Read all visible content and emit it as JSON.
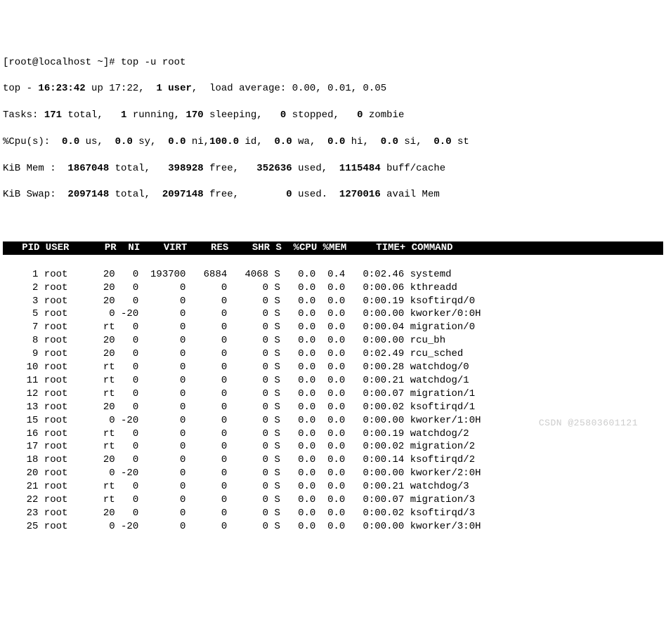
{
  "prompt": "[root@localhost ~]# ",
  "command": "top -u root",
  "summary": {
    "line1_a": "top - ",
    "time": "16:23:42",
    "line1_b": " up 17:22,  ",
    "users": "1 user",
    "line1_c": ",  load average: 0.00, 0.01, 0.05",
    "tasks_label": "Tasks: ",
    "tasks_total": "171 ",
    "tasks_total_t": "total,   ",
    "tasks_running": "1 ",
    "tasks_running_t": "running, ",
    "tasks_sleeping": "170 ",
    "tasks_sleeping_t": "sleeping,   ",
    "tasks_stopped": "0 ",
    "tasks_stopped_t": "stopped,   ",
    "tasks_zombie": "0 ",
    "tasks_zombie_t": "zombie",
    "cpu_label": "%Cpu(s):  ",
    "cpu_us": "0.0 ",
    "cpu_us_t": "us,  ",
    "cpu_sy": "0.0 ",
    "cpu_sy_t": "sy,  ",
    "cpu_ni": "0.0 ",
    "cpu_ni_t": "ni,",
    "cpu_id": "100.0 ",
    "cpu_id_t": "id,  ",
    "cpu_wa": "0.0 ",
    "cpu_wa_t": "wa,  ",
    "cpu_hi": "0.0 ",
    "cpu_hi_t": "hi,  ",
    "cpu_si": "0.0 ",
    "cpu_si_t": "si,  ",
    "cpu_st": "0.0 ",
    "cpu_st_t": "st",
    "mem_label": "KiB Mem :  ",
    "mem_total": "1867048 ",
    "mem_total_t": "total,   ",
    "mem_free": "398928 ",
    "mem_free_t": "free,   ",
    "mem_used": "352636 ",
    "mem_used_t": "used,  ",
    "mem_buff": "1115484 ",
    "mem_buff_t": "buff/cache",
    "swap_label": "KiB Swap:  ",
    "swap_total": "2097148 ",
    "swap_total_t": "total,  ",
    "swap_free": "2097148 ",
    "swap_free_t": "free,        ",
    "swap_used": "0 ",
    "swap_used_t": "used.  ",
    "swap_avail": "1270016 ",
    "swap_avail_t": "avail Mem"
  },
  "header": "   PID USER      PR  NI    VIRT    RES    SHR S  %CPU %MEM     TIME+ COMMAND           ",
  "rows": [
    {
      "pid": "     1",
      "user": " root     ",
      "pr": " 20",
      "ni": "   0",
      "virt": "  193700",
      "res": "   6884",
      "shr": "   4068",
      "s": " S",
      "cpu": "   0.0",
      "mem": "  0.4",
      "time": "   0:02.46",
      "cmd": " systemd"
    },
    {
      "pid": "     2",
      "user": " root     ",
      "pr": " 20",
      "ni": "   0",
      "virt": "       0",
      "res": "      0",
      "shr": "      0",
      "s": " S",
      "cpu": "   0.0",
      "mem": "  0.0",
      "time": "   0:00.06",
      "cmd": " kthreadd"
    },
    {
      "pid": "     3",
      "user": " root     ",
      "pr": " 20",
      "ni": "   0",
      "virt": "       0",
      "res": "      0",
      "shr": "      0",
      "s": " S",
      "cpu": "   0.0",
      "mem": "  0.0",
      "time": "   0:00.19",
      "cmd": " ksoftirqd/0"
    },
    {
      "pid": "     5",
      "user": " root     ",
      "pr": "  0",
      "ni": " -20",
      "virt": "       0",
      "res": "      0",
      "shr": "      0",
      "s": " S",
      "cpu": "   0.0",
      "mem": "  0.0",
      "time": "   0:00.00",
      "cmd": " kworker/0:0H"
    },
    {
      "pid": "     7",
      "user": " root     ",
      "pr": " rt",
      "ni": "   0",
      "virt": "       0",
      "res": "      0",
      "shr": "      0",
      "s": " S",
      "cpu": "   0.0",
      "mem": "  0.0",
      "time": "   0:00.04",
      "cmd": " migration/0"
    },
    {
      "pid": "     8",
      "user": " root     ",
      "pr": " 20",
      "ni": "   0",
      "virt": "       0",
      "res": "      0",
      "shr": "      0",
      "s": " S",
      "cpu": "   0.0",
      "mem": "  0.0",
      "time": "   0:00.00",
      "cmd": " rcu_bh"
    },
    {
      "pid": "     9",
      "user": " root     ",
      "pr": " 20",
      "ni": "   0",
      "virt": "       0",
      "res": "      0",
      "shr": "      0",
      "s": " S",
      "cpu": "   0.0",
      "mem": "  0.0",
      "time": "   0:02.49",
      "cmd": " rcu_sched"
    },
    {
      "pid": "    10",
      "user": " root     ",
      "pr": " rt",
      "ni": "   0",
      "virt": "       0",
      "res": "      0",
      "shr": "      0",
      "s": " S",
      "cpu": "   0.0",
      "mem": "  0.0",
      "time": "   0:00.28",
      "cmd": " watchdog/0"
    },
    {
      "pid": "    11",
      "user": " root     ",
      "pr": " rt",
      "ni": "   0",
      "virt": "       0",
      "res": "      0",
      "shr": "      0",
      "s": " S",
      "cpu": "   0.0",
      "mem": "  0.0",
      "time": "   0:00.21",
      "cmd": " watchdog/1"
    },
    {
      "pid": "    12",
      "user": " root     ",
      "pr": " rt",
      "ni": "   0",
      "virt": "       0",
      "res": "      0",
      "shr": "      0",
      "s": " S",
      "cpu": "   0.0",
      "mem": "  0.0",
      "time": "   0:00.07",
      "cmd": " migration/1"
    },
    {
      "pid": "    13",
      "user": " root     ",
      "pr": " 20",
      "ni": "   0",
      "virt": "       0",
      "res": "      0",
      "shr": "      0",
      "s": " S",
      "cpu": "   0.0",
      "mem": "  0.0",
      "time": "   0:00.02",
      "cmd": " ksoftirqd/1"
    },
    {
      "pid": "    15",
      "user": " root     ",
      "pr": "  0",
      "ni": " -20",
      "virt": "       0",
      "res": "      0",
      "shr": "      0",
      "s": " S",
      "cpu": "   0.0",
      "mem": "  0.0",
      "time": "   0:00.00",
      "cmd": " kworker/1:0H"
    },
    {
      "pid": "    16",
      "user": " root     ",
      "pr": " rt",
      "ni": "   0",
      "virt": "       0",
      "res": "      0",
      "shr": "      0",
      "s": " S",
      "cpu": "   0.0",
      "mem": "  0.0",
      "time": "   0:00.19",
      "cmd": " watchdog/2"
    },
    {
      "pid": "    17",
      "user": " root     ",
      "pr": " rt",
      "ni": "   0",
      "virt": "       0",
      "res": "      0",
      "shr": "      0",
      "s": " S",
      "cpu": "   0.0",
      "mem": "  0.0",
      "time": "   0:00.02",
      "cmd": " migration/2"
    },
    {
      "pid": "    18",
      "user": " root     ",
      "pr": " 20",
      "ni": "   0",
      "virt": "       0",
      "res": "      0",
      "shr": "      0",
      "s": " S",
      "cpu": "   0.0",
      "mem": "  0.0",
      "time": "   0:00.14",
      "cmd": " ksoftirqd/2"
    },
    {
      "pid": "    20",
      "user": " root     ",
      "pr": "  0",
      "ni": " -20",
      "virt": "       0",
      "res": "      0",
      "shr": "      0",
      "s": " S",
      "cpu": "   0.0",
      "mem": "  0.0",
      "time": "   0:00.00",
      "cmd": " kworker/2:0H"
    },
    {
      "pid": "    21",
      "user": " root     ",
      "pr": " rt",
      "ni": "   0",
      "virt": "       0",
      "res": "      0",
      "shr": "      0",
      "s": " S",
      "cpu": "   0.0",
      "mem": "  0.0",
      "time": "   0:00.21",
      "cmd": " watchdog/3"
    },
    {
      "pid": "    22",
      "user": " root     ",
      "pr": " rt",
      "ni": "   0",
      "virt": "       0",
      "res": "      0",
      "shr": "      0",
      "s": " S",
      "cpu": "   0.0",
      "mem": "  0.0",
      "time": "   0:00.07",
      "cmd": " migration/3"
    },
    {
      "pid": "    23",
      "user": " root     ",
      "pr": " 20",
      "ni": "   0",
      "virt": "       0",
      "res": "      0",
      "shr": "      0",
      "s": " S",
      "cpu": "   0.0",
      "mem": "  0.0",
      "time": "   0:00.02",
      "cmd": " ksoftirqd/3"
    },
    {
      "pid": "    25",
      "user": " root     ",
      "pr": "  0",
      "ni": " -20",
      "virt": "       0",
      "res": "      0",
      "shr": "      0",
      "s": " S",
      "cpu": "   0.0",
      "mem": "  0.0",
      "time": "   0:00.00",
      "cmd": " kworker/3:0H"
    }
  ],
  "watermark": "CSDN @25803601121"
}
